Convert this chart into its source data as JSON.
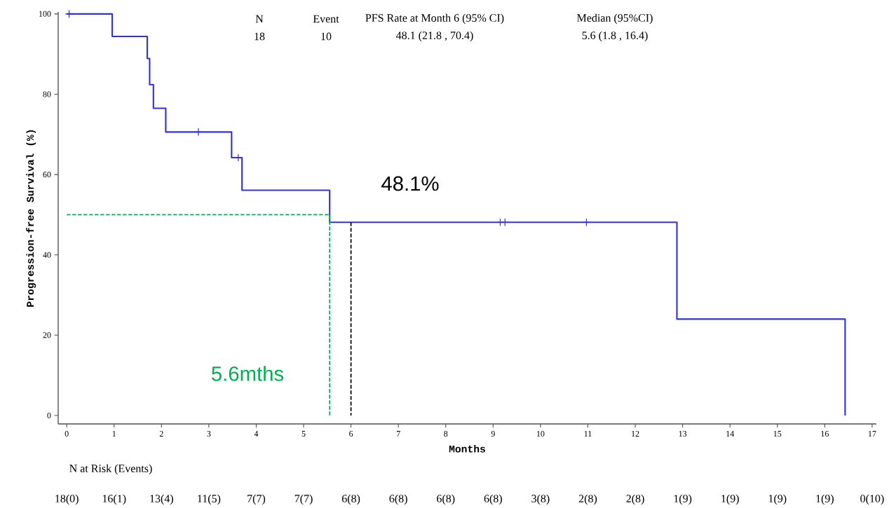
{
  "chart_data": {
    "type": "step",
    "xlabel": "Months",
    "ylabel": "Progression-free Survival (%)",
    "xlim": [
      -0.18,
      17.09
    ],
    "ylim": [
      -2.1,
      100.5
    ],
    "xticks": [
      0,
      1,
      2,
      3,
      4,
      5,
      6,
      7,
      8,
      9,
      10,
      11,
      12,
      13,
      14,
      15,
      16,
      17
    ],
    "yticks": [
      0,
      20,
      40,
      60,
      80,
      100
    ],
    "grid": false,
    "series": [
      {
        "color": "#3333dd",
        "marker": "none",
        "line_style": "solid",
        "x": [
          0,
          0.96,
          1.7,
          1.75,
          1.83,
          2.09,
          3.48,
          3.7,
          5.55,
          12.88,
          16.43
        ],
        "values": [
          100,
          94.4,
          88.9,
          82.4,
          76.5,
          70.6,
          64.2,
          56.1,
          48.1,
          24.0,
          0
        ]
      },
      {
        "type": "scatter",
        "color": "#3333dd",
        "marker": "cross",
        "x": [
          0.05,
          2.78,
          3.62,
          9.15,
          9.25,
          10.97
        ],
        "values": [
          100,
          70.6,
          64.2,
          48.1,
          48.1,
          48.1
        ]
      },
      {
        "type": "line",
        "color": "#00b050",
        "marker": "none",
        "line_style": "dashed",
        "x": [
          0,
          5.55,
          5.55
        ],
        "values": [
          50,
          50,
          0
        ]
      },
      {
        "type": "line",
        "color": "#000000",
        "marker": "none",
        "line_style": "dashed",
        "x": [
          6,
          6
        ],
        "values": [
          48.1,
          0
        ]
      }
    ],
    "annotations": [
      "N",
      "Event",
      "PFS Rate at Month 6 (95% CI)",
      "Median (95%CI)",
      "18",
      "10",
      "48.1 (21.8 , 70.4)",
      "5.6 (1.8 , 16.4)",
      "48.1%",
      "5.6mths",
      "N at Risk (Events)",
      "18(0)",
      "16(1)",
      "13(4)",
      "11(5)",
      "7(7)",
      "7(7)",
      "6(8)",
      "6(8)",
      "6(8)",
      "6(8)",
      "3(8)",
      "2(8)",
      "2(8)",
      "1(9)",
      "1(9)",
      "1(9)",
      "1(9)",
      "0(10)"
    ]
  }
}
